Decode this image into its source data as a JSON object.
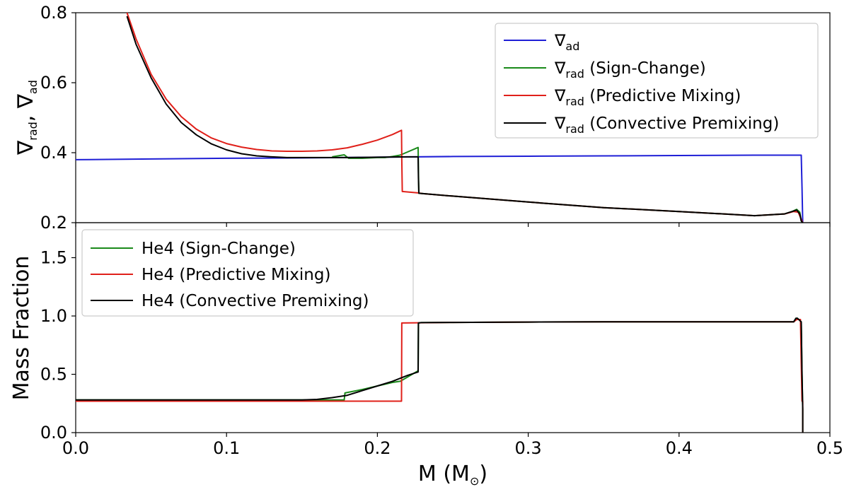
{
  "colors": {
    "blue": "#1f1fd6",
    "green": "#1a8a1a",
    "red": "#e0201a",
    "black": "#000000"
  },
  "chart_data": [
    {
      "type": "line",
      "panel": "top",
      "ylabel": "∇rad, ∇ad",
      "xlim": [
        0.0,
        0.5
      ],
      "ylim": [
        0.2,
        0.8
      ],
      "yticks": [
        "0.2",
        "0.4",
        "0.6",
        "0.8"
      ],
      "legend_placement": "top-right",
      "series": [
        {
          "name": "∇ad",
          "color_key": "blue",
          "x": [
            0.0,
            0.05,
            0.1,
            0.15,
            0.2,
            0.25,
            0.3,
            0.35,
            0.4,
            0.45,
            0.476,
            0.481,
            0.4815,
            0.482
          ],
          "y": [
            0.38,
            0.382,
            0.384,
            0.385,
            0.387,
            0.389,
            0.39,
            0.391,
            0.392,
            0.393,
            0.393,
            0.393,
            0.3,
            0.2
          ]
        },
        {
          "name": "∇rad (Sign-Change)",
          "color_key": "green",
          "x": [
            0.17,
            0.178,
            0.181,
            0.19,
            0.2,
            0.205,
            0.21,
            0.215,
            0.22,
            0.227,
            0.2272,
            0.2275,
            0.25,
            0.3,
            0.35,
            0.4,
            0.45,
            0.47,
            0.475,
            0.478,
            0.48,
            0.481,
            0.482
          ],
          "y": [
            0.388,
            0.394,
            0.384,
            0.384,
            0.386,
            0.386,
            0.389,
            0.393,
            0.402,
            0.415,
            0.35,
            0.284,
            0.276,
            0.259,
            0.243,
            0.232,
            0.22,
            0.225,
            0.232,
            0.238,
            0.23,
            0.205,
            0.2
          ]
        },
        {
          "name": "∇rad (Predictive Mixing)",
          "color_key": "red",
          "x": [
            0.034,
            0.04,
            0.05,
            0.06,
            0.07,
            0.08,
            0.09,
            0.1,
            0.11,
            0.12,
            0.13,
            0.14,
            0.15,
            0.16,
            0.17,
            0.18,
            0.19,
            0.2,
            0.21,
            0.216,
            0.2162,
            0.2165,
            0.227,
            0.23,
            0.25,
            0.3,
            0.35,
            0.4,
            0.45,
            0.47,
            0.476,
            0.479,
            0.481,
            0.482
          ],
          "y": [
            0.8,
            0.725,
            0.624,
            0.553,
            0.503,
            0.467,
            0.442,
            0.426,
            0.416,
            0.409,
            0.405,
            0.404,
            0.404,
            0.405,
            0.408,
            0.414,
            0.424,
            0.436,
            0.452,
            0.464,
            0.38,
            0.289,
            0.285,
            0.283,
            0.276,
            0.259,
            0.243,
            0.232,
            0.22,
            0.225,
            0.232,
            0.23,
            0.21,
            0.2
          ]
        },
        {
          "name": "∇rad (Convective Premixing)",
          "color_key": "black",
          "x": [
            0.034,
            0.04,
            0.05,
            0.06,
            0.07,
            0.08,
            0.09,
            0.1,
            0.11,
            0.12,
            0.13,
            0.14,
            0.15,
            0.16,
            0.17,
            0.18,
            0.2,
            0.22,
            0.227,
            0.2272,
            0.2275,
            0.25,
            0.3,
            0.35,
            0.4,
            0.45,
            0.47,
            0.475,
            0.478,
            0.48,
            0.481,
            0.482
          ],
          "y": [
            0.79,
            0.71,
            0.614,
            0.539,
            0.486,
            0.451,
            0.425,
            0.408,
            0.397,
            0.391,
            0.388,
            0.386,
            0.386,
            0.386,
            0.386,
            0.386,
            0.387,
            0.388,
            0.388,
            0.33,
            0.284,
            0.276,
            0.259,
            0.243,
            0.232,
            0.22,
            0.225,
            0.232,
            0.236,
            0.225,
            0.205,
            0.2
          ]
        }
      ]
    },
    {
      "type": "line",
      "panel": "bottom",
      "xlabel": "M (M⊙)",
      "ylabel": "Mass Fraction",
      "xlim": [
        0.0,
        0.5
      ],
      "ylim": [
        0.0,
        1.8
      ],
      "xticks": [
        "0.0",
        "0.1",
        "0.2",
        "0.3",
        "0.4",
        "0.5"
      ],
      "yticks": [
        "0.0",
        "0.5",
        "1.0",
        "1.5"
      ],
      "legend_placement": "top-left",
      "series": [
        {
          "name": "He4 (Sign-Change)",
          "color_key": "green",
          "x": [
            0.0,
            0.1,
            0.178,
            0.1785,
            0.19,
            0.2,
            0.21,
            0.215,
            0.2152,
            0.227,
            0.2272,
            0.229,
            0.25,
            0.3,
            0.35,
            0.4,
            0.45,
            0.476,
            0.4775,
            0.4785,
            0.481,
            0.4815,
            0.482,
            0.482
          ],
          "y": [
            0.28,
            0.28,
            0.28,
            0.34,
            0.37,
            0.4,
            0.43,
            0.44,
            0.44,
            0.53,
            0.94,
            0.943,
            0.945,
            0.948,
            0.95,
            0.95,
            0.95,
            0.95,
            0.98,
            0.98,
            0.95,
            0.5,
            0.2,
            0.0
          ]
        },
        {
          "name": "He4 (Predictive Mixing)",
          "color_key": "red",
          "x": [
            0.0,
            0.1,
            0.216,
            0.2162,
            0.25,
            0.3,
            0.35,
            0.4,
            0.45,
            0.476,
            0.478,
            0.4805,
            0.481,
            0.4815,
            0.482,
            0.482
          ],
          "y": [
            0.27,
            0.27,
            0.27,
            0.94,
            0.945,
            0.948,
            0.95,
            0.95,
            0.95,
            0.95,
            0.97,
            0.97,
            0.6,
            0.27,
            0.27,
            0.0
          ]
        },
        {
          "name": "He4 (Convective Premixing)",
          "color_key": "black",
          "x": [
            0.0,
            0.1,
            0.15,
            0.16,
            0.17,
            0.18,
            0.19,
            0.2,
            0.21,
            0.22,
            0.227,
            0.2272,
            0.229,
            0.25,
            0.3,
            0.35,
            0.4,
            0.45,
            0.476,
            0.4775,
            0.4785,
            0.481,
            0.4815,
            0.482,
            0.482
          ],
          "y": [
            0.28,
            0.28,
            0.28,
            0.285,
            0.3,
            0.32,
            0.36,
            0.4,
            0.44,
            0.49,
            0.52,
            0.94,
            0.943,
            0.945,
            0.948,
            0.95,
            0.95,
            0.95,
            0.95,
            0.98,
            0.98,
            0.95,
            0.5,
            0.2,
            0.0
          ]
        }
      ]
    }
  ]
}
